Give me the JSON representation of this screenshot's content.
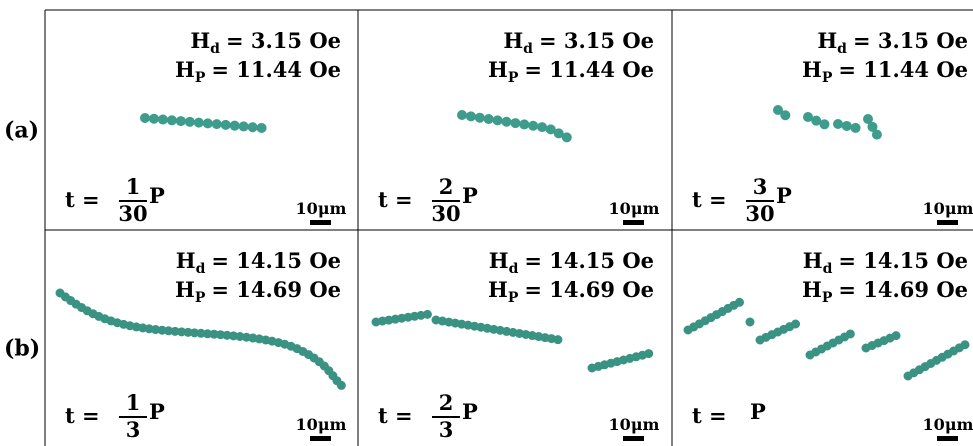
{
  "rows": [
    {
      "label": "(a)",
      "panels": [
        {
          "hd": {
            "symbol": "H",
            "sub": "d",
            "text": "= 3.15 Oe"
          },
          "hp": {
            "symbol": "H",
            "sub": "P",
            "text": "= 11.44 Oe"
          },
          "time": {
            "lhs": "t =",
            "num": "1",
            "den": "30",
            "unit": "P"
          },
          "scale": "10μm"
        },
        {
          "hd": {
            "symbol": "H",
            "sub": "d",
            "text": "= 3.15 Oe"
          },
          "hp": {
            "symbol": "H",
            "sub": "P",
            "text": "= 11.44 Oe"
          },
          "time": {
            "lhs": "t =",
            "num": "2",
            "den": "30",
            "unit": "P"
          },
          "scale": "10μm"
        },
        {
          "hd": {
            "symbol": "H",
            "sub": "d",
            "text": "= 3.15 Oe"
          },
          "hp": {
            "symbol": "H",
            "sub": "P",
            "text": "= 11.44 Oe"
          },
          "time": {
            "lhs": "t =",
            "num": "3",
            "den": "30",
            "unit": "P"
          },
          "scale": "10μm"
        }
      ]
    },
    {
      "label": "(b)",
      "panels": [
        {
          "hd": {
            "symbol": "H",
            "sub": "d",
            "text": "= 14.15 Oe"
          },
          "hp": {
            "symbol": "H",
            "sub": "P",
            "text": "= 14.69 Oe"
          },
          "time": {
            "lhs": "t =",
            "num": "1",
            "den": "3",
            "unit": "P"
          },
          "scale": "10μm"
        },
        {
          "hd": {
            "symbol": "H",
            "sub": "d",
            "text": "= 14.15 Oe"
          },
          "hp": {
            "symbol": "H",
            "sub": "P",
            "text": "= 14.69 Oe"
          },
          "time": {
            "lhs": "t =",
            "num": "2",
            "den": "3",
            "unit": "P"
          },
          "scale": "10μm"
        },
        {
          "hd": {
            "symbol": "H",
            "sub": "d",
            "text": "= 14.15 Oe"
          },
          "hp": {
            "symbol": "H",
            "sub": "P",
            "text": "= 14.69 Oe"
          },
          "time": {
            "lhs": "t =",
            "unit": "P"
          },
          "scale": "10μm"
        }
      ]
    }
  ]
}
